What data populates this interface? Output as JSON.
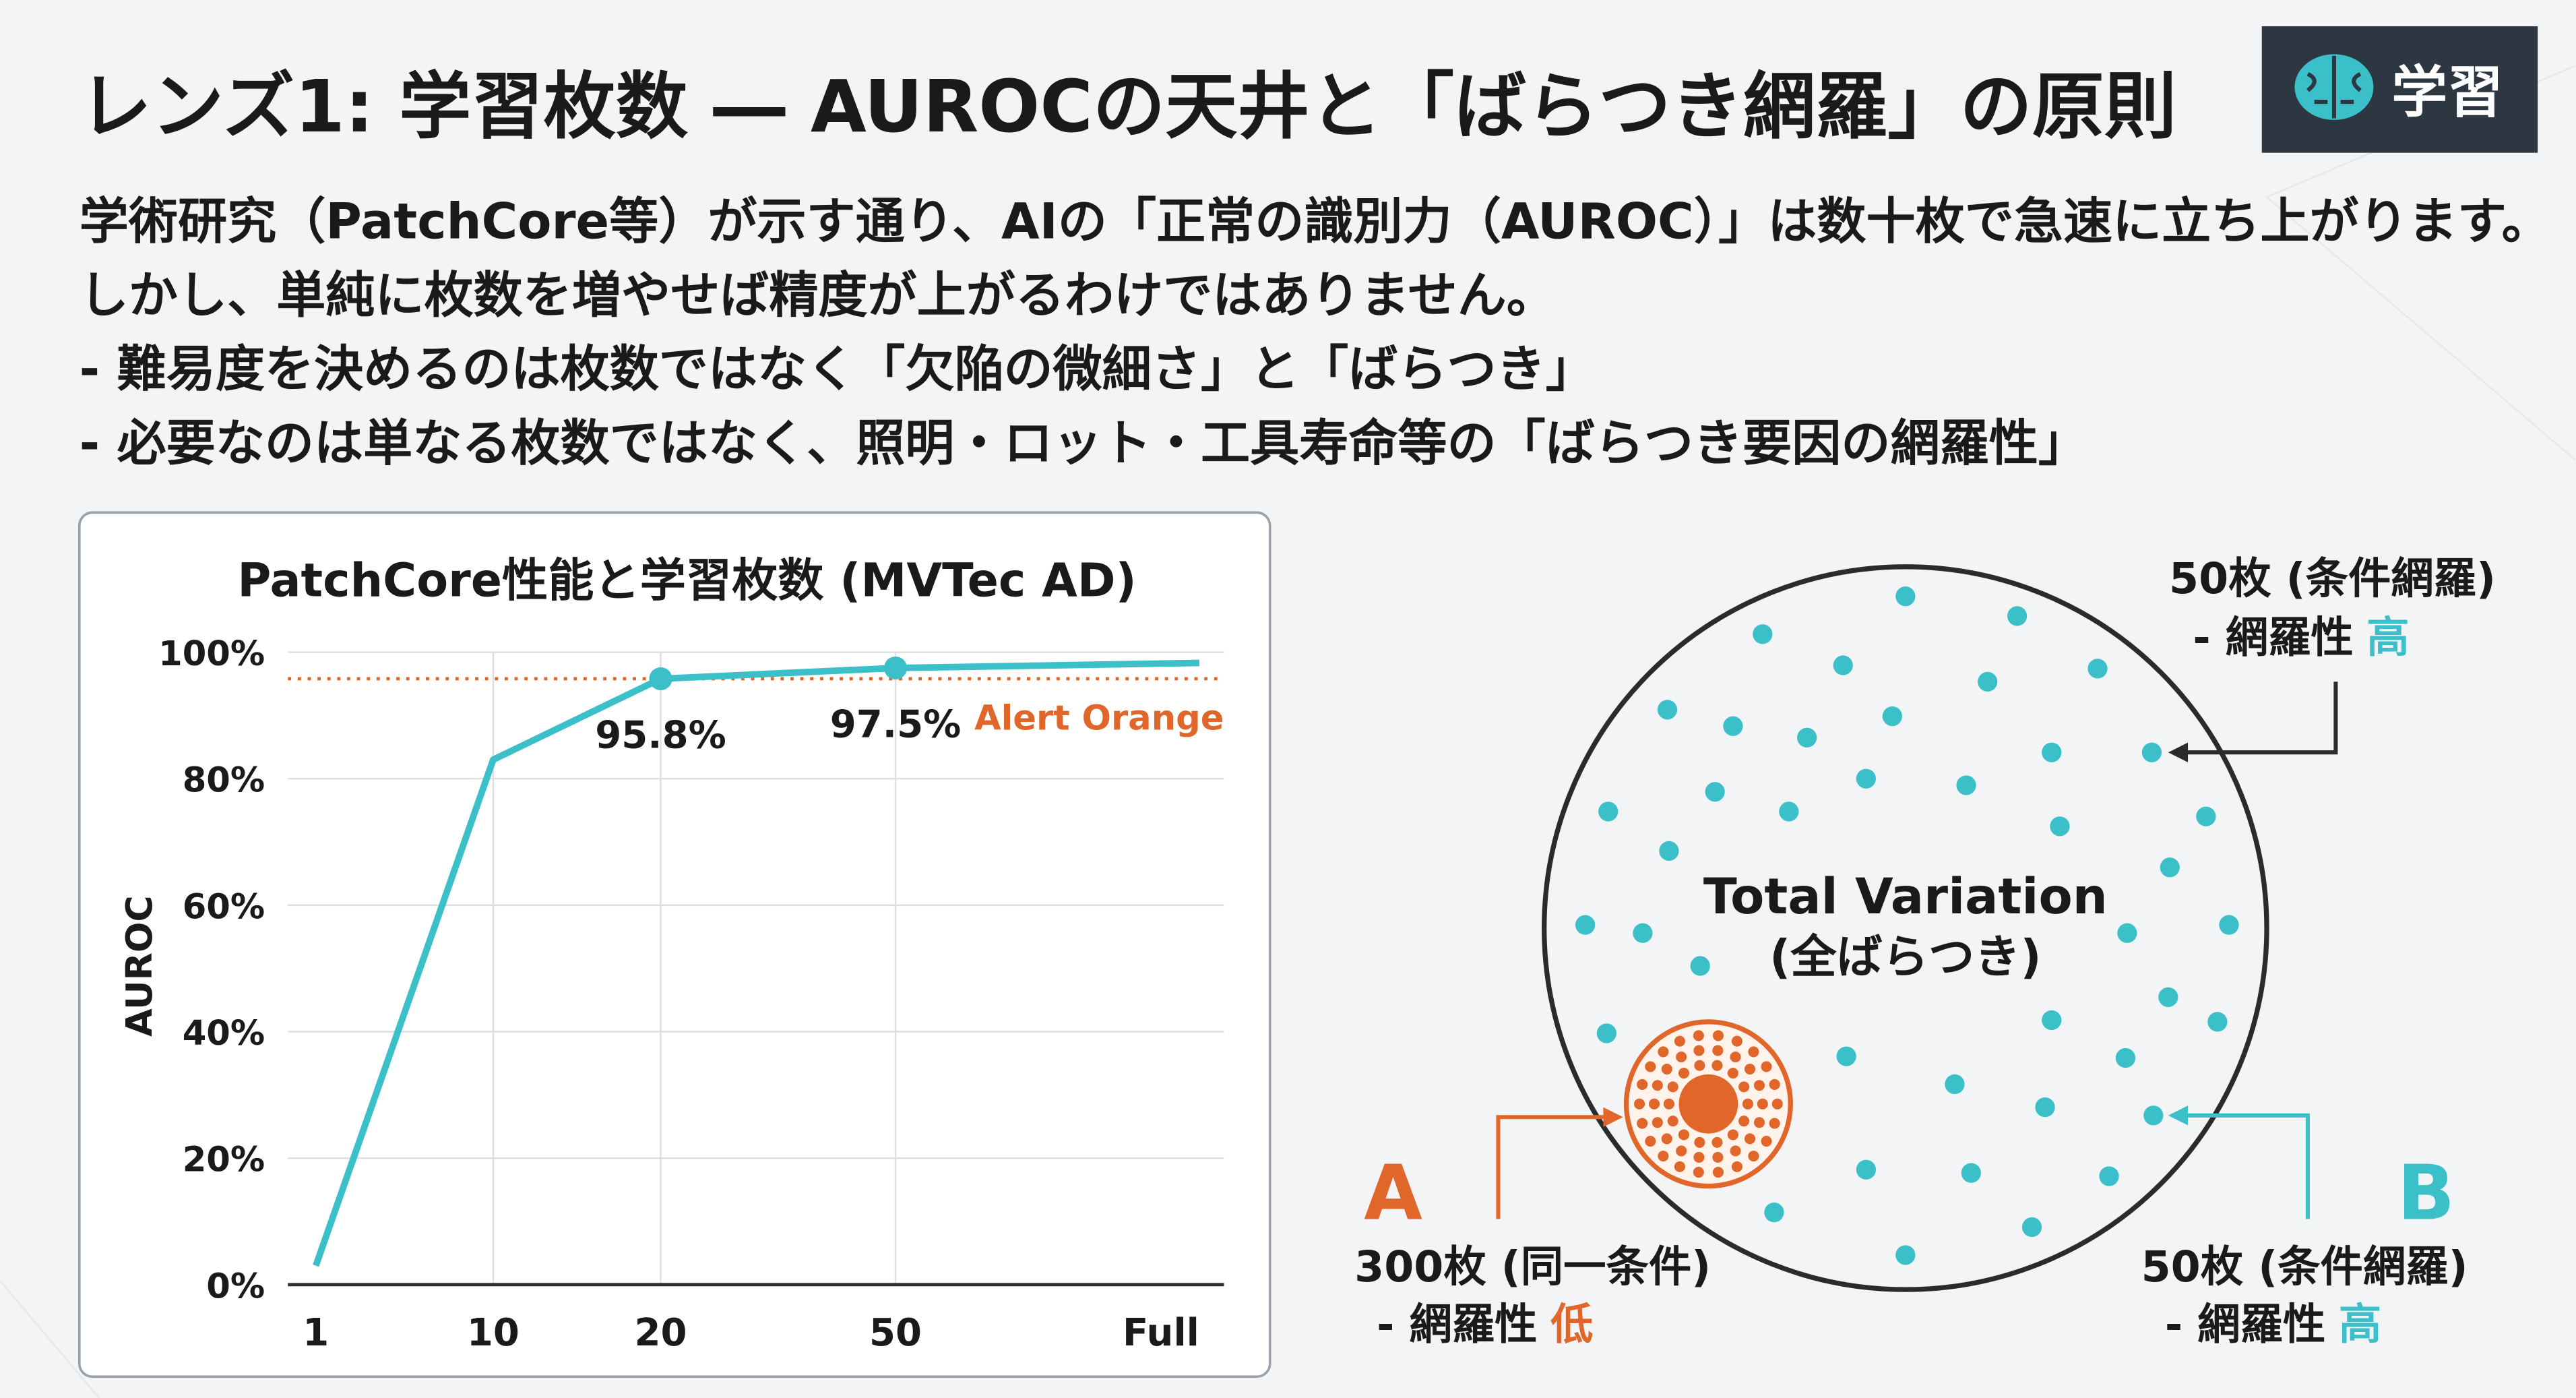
{
  "header": {
    "title": "レンズ1: 学習枚数 ― AUROCの天井と「ばらつき網羅」の原則",
    "badge": "学習"
  },
  "body": {
    "lines": [
      "学術研究（PatchCore等）が示す通り、AIの「正常の識別力（AUROC）」は数十枚で急速に立ち上がります。",
      "しかし、単純に枚数を増やせば精度が上がるわけではありません。",
      "- 難易度を決めるのは枚数ではなく「欠陥の微細さ」と「ばらつき」",
      "- 必要なのは単なる枚数ではなく、照明・ロット・工具寿命等の「ばらつき要因の網羅性」"
    ]
  },
  "chart_data": {
    "type": "line",
    "title": "PatchCore性能と学習枚数 (MVTec AD)",
    "y_label": "AUROC",
    "categories": [
      "1",
      "10",
      "20",
      "50",
      "Full"
    ],
    "values": [
      3,
      83,
      95.8,
      97.5,
      98.3
    ],
    "value_labels": [
      null,
      null,
      "95.8%",
      "97.5%",
      null
    ],
    "color": "#3bbfc9",
    "ylim": [
      0,
      100
    ],
    "yticks": [
      {
        "value": 0,
        "label": "0%"
      },
      {
        "value": 20,
        "label": "20%"
      },
      {
        "value": 40,
        "label": "40%"
      },
      {
        "value": 60,
        "label": "60%"
      },
      {
        "value": 80,
        "label": "80%"
      },
      {
        "value": 100,
        "label": "100%"
      }
    ],
    "grid": true,
    "threshold": {
      "value": 95.8,
      "label": "Alert Orange",
      "color": "#e0662a"
    }
  },
  "diagram": {
    "center_title": "Total Variation",
    "center_subtitle": "(全ばらつき)",
    "top_right": {
      "count": "50枚 (条件網羅)",
      "coverage": "- 網羅性",
      "level": "高"
    },
    "a": {
      "letter": "A",
      "count": "300枚 (同一条件)",
      "coverage": "- 網羅性",
      "level": "低"
    },
    "b": {
      "letter": "B",
      "count": "50枚 (条件網羅)",
      "coverage": "- 網羅性",
      "level": "高"
    }
  }
}
